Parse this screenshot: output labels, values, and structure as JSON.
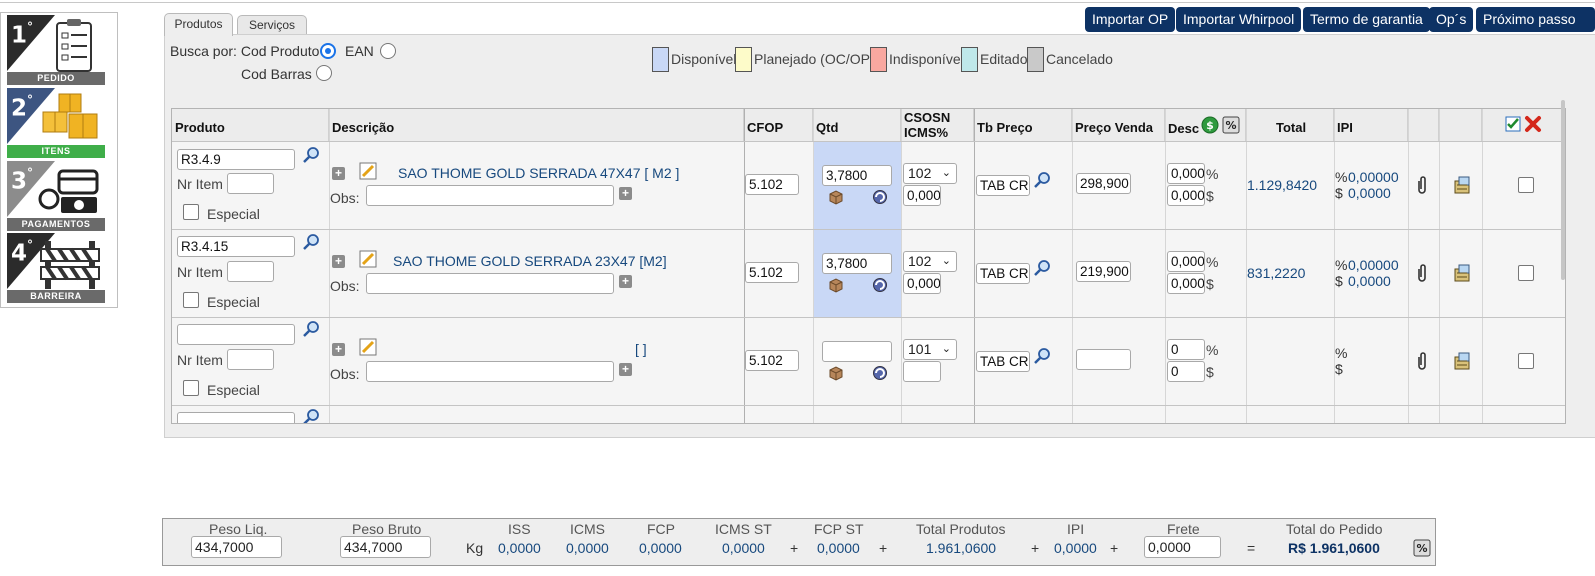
{
  "steps": [
    {
      "number": "1",
      "label": "PEDIDO"
    },
    {
      "number": "2",
      "label": "ITENS"
    },
    {
      "number": "3",
      "label": "PAGAMENTOS"
    },
    {
      "number": "4",
      "label": "BARREIRA"
    }
  ],
  "step_ordinal": "°",
  "tabs": {
    "produtos": "Produtos",
    "servicos": "Serviços"
  },
  "top_buttons": [
    "Importar OP",
    "Importar Whirpool",
    "Termo de garantia",
    "Op´s",
    "Próximo passo"
  ],
  "busca": {
    "label": "Busca por:",
    "cod_produto": "Cod Produto",
    "ean": "EAN",
    "cod_barras": "Cod Barras",
    "selected": "Cod Produto"
  },
  "legend": [
    {
      "label": "Disponível",
      "color": "#c9d8f6"
    },
    {
      "label": "Planejado (OC/OP)",
      "color": "#fdfbc9"
    },
    {
      "label": "Indisponível",
      "color": "#f9a8a0"
    },
    {
      "label": "Editado",
      "color": "#bfe8ea"
    },
    {
      "label": "Cancelado",
      "color": "#c9c9c9"
    }
  ],
  "table": {
    "headers": {
      "produto": "Produto",
      "descricao": "Descrição",
      "cfop": "CFOP",
      "qtd": "Qtd",
      "csosn": "CSOSN",
      "icms": "ICMS%",
      "tb_preco": "Tb Preço",
      "preco_venda": "Preço Venda",
      "desc": "Desc",
      "total": "Total",
      "ipi": "IPI"
    },
    "nr_item_label": "Nr Item",
    "especial_label": "Especial",
    "obs_label": "Obs:",
    "rows": [
      {
        "produto": "R3.4.9",
        "descricao": "SAO THOME GOLD SERRADA 47X47 [ M2 ]",
        "cfop": "5.102",
        "qtd": "3,7800",
        "csosn": "102",
        "icms": "0,000",
        "tb_preco": "TAB CR",
        "preco_venda": "298,900",
        "desc_pct": "0,000",
        "desc_val": "0,000",
        "total": "1.129,8420",
        "ipi_pct": "0,00000",
        "ipi_val": "0,0000"
      },
      {
        "produto": "R3.4.15",
        "descricao": "SAO THOME GOLD SERRADA 23X47 [M2]",
        "cfop": "5.102",
        "qtd": "3,7800",
        "csosn": "102",
        "icms": "0,000",
        "tb_preco": "TAB CR",
        "preco_venda": "219,900",
        "desc_pct": "0,000",
        "desc_val": "0,000",
        "total": "831,2220",
        "ipi_pct": "0,00000",
        "ipi_val": "0,0000"
      },
      {
        "produto": "",
        "descricao": "[ ]",
        "cfop": "5.102",
        "qtd": "",
        "csosn": "101",
        "icms": "",
        "tb_preco": "TAB CR",
        "preco_venda": "",
        "desc_pct": "0",
        "desc_val": "0",
        "total": "",
        "ipi_pct": "",
        "ipi_val": ""
      }
    ],
    "pct_symbol": "%",
    "currency_symbol": "$"
  },
  "footer": {
    "peso_liq_label": "Peso Liq.",
    "peso_liq": "434,7000",
    "peso_bruto_label": "Peso Bruto",
    "peso_bruto": "434,7000",
    "unit": "Kg",
    "iss_label": "ISS",
    "iss": "0,0000",
    "icms_label": "ICMS",
    "icms": "0,0000",
    "fcp_label": "FCP",
    "fcp": "0,0000",
    "icms_st_label": "ICMS ST",
    "icms_st": "0,0000",
    "fcp_st_label": "FCP ST",
    "fcp_st": "0,0000",
    "total_produtos_label": "Total Produtos",
    "total_produtos": "1.961,0600",
    "ipi_label": "IPI",
    "ipi": "0,0000",
    "frete_label": "Frete",
    "frete": "0,0000",
    "total_pedido_label": "Total do Pedido",
    "total_pedido": "R$ 1.961,0600",
    "plus": "+",
    "equals": "="
  }
}
